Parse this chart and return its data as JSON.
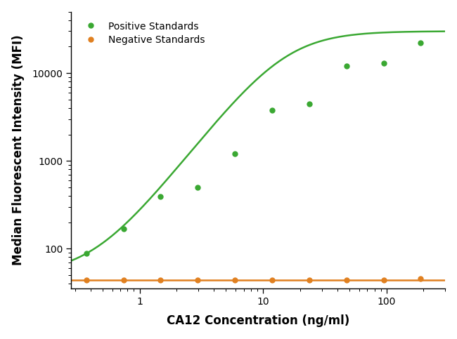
{
  "positive_x": [
    0.37,
    0.74,
    1.48,
    2.96,
    5.93,
    11.85,
    23.7,
    47.4,
    94.8,
    189.6
  ],
  "positive_y": [
    88,
    170,
    390,
    500,
    1200,
    3800,
    4500,
    12000,
    13000,
    22000
  ],
  "negative_x": [
    0.37,
    0.74,
    1.48,
    2.96,
    5.93,
    11.85,
    23.7,
    47.4,
    94.8,
    189.6
  ],
  "negative_y": [
    44,
    44,
    44,
    44,
    44,
    44,
    44,
    44,
    44,
    46
  ],
  "positive_color": "#3aa832",
  "negative_color": "#e08020",
  "xlabel": "CA12 Concentration (ng/ml)",
  "ylabel": "Median Fluorescent Intensity (MFI)",
  "positive_label": "Positive Standards",
  "negative_label": "Negative Standards",
  "ylim_bottom": 35,
  "ylim_top": 50000,
  "xlim_left": 0.28,
  "xlim_right": 300,
  "background_color": "#ffffff",
  "marker_size": 5,
  "line_width": 1.8,
  "4pl_params": [
    50,
    30000,
    15,
    1.8
  ]
}
